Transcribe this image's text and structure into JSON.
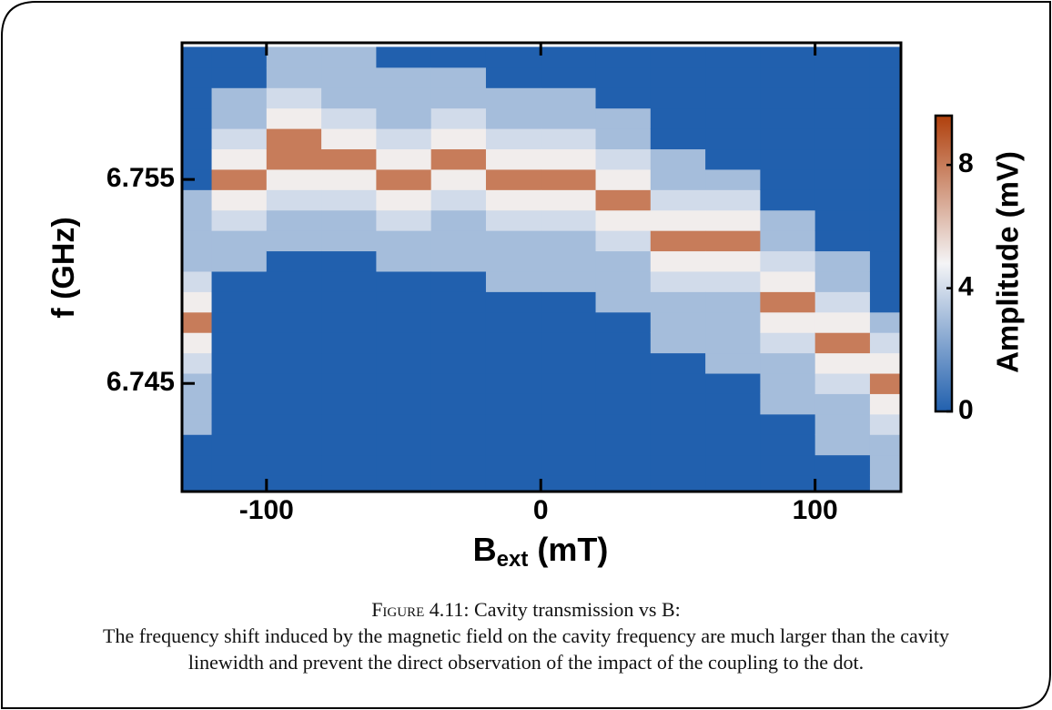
{
  "chart_data": {
    "type": "heatmap",
    "xlabel": {
      "main": "B",
      "sub": "ext",
      "unit": "(mT)"
    },
    "ylabel": "f (GHz)",
    "zlabel": "Amplitude (mV)",
    "x": [
      -130,
      -110,
      -90,
      -70,
      -50,
      -30,
      -10,
      10,
      30,
      50,
      70,
      90,
      110,
      130
    ],
    "y": [
      6.74,
      6.741,
      6.742,
      6.743,
      6.744,
      6.745,
      6.746,
      6.747,
      6.748,
      6.749,
      6.75,
      6.751,
      6.752,
      6.753,
      6.754,
      6.755,
      6.756,
      6.757,
      6.758,
      6.759,
      6.76,
      6.761
    ],
    "z": [
      [
        0,
        0,
        0,
        3,
        3,
        3,
        4,
        5,
        8,
        5,
        4,
        3,
        3,
        3,
        3,
        0,
        0,
        0,
        0,
        0,
        0,
        0
      ],
      [
        0,
        0,
        0,
        0,
        0,
        0,
        0,
        0,
        0,
        0,
        0,
        3,
        3,
        4,
        5,
        8,
        5,
        4,
        3,
        3,
        0,
        0
      ],
      [
        0,
        0,
        0,
        0,
        0,
        0,
        0,
        0,
        0,
        0,
        0,
        0,
        3,
        3,
        4,
        5,
        8,
        8,
        5,
        4,
        3,
        3
      ],
      [
        0,
        0,
        0,
        0,
        0,
        0,
        0,
        0,
        0,
        0,
        0,
        0,
        3,
        3,
        4,
        5,
        8,
        5,
        4,
        3,
        3,
        3
      ],
      [
        0,
        0,
        0,
        0,
        0,
        0,
        0,
        0,
        0,
        0,
        0,
        3,
        3,
        4,
        5,
        8,
        5,
        4,
        3,
        3,
        3,
        0
      ],
      [
        0,
        0,
        0,
        0,
        0,
        0,
        0,
        0,
        0,
        0,
        0,
        3,
        3,
        3,
        4,
        5,
        8,
        5,
        4,
        3,
        3,
        0
      ],
      [
        0,
        0,
        0,
        0,
        0,
        0,
        0,
        0,
        0,
        0,
        3,
        3,
        3,
        4,
        5,
        8,
        5,
        4,
        3,
        3,
        0,
        0
      ],
      [
        0,
        0,
        0,
        0,
        0,
        0,
        0,
        0,
        0,
        0,
        3,
        3,
        3,
        4,
        5,
        8,
        5,
        4,
        3,
        3,
        0,
        0
      ],
      [
        0,
        0,
        0,
        0,
        0,
        0,
        0,
        0,
        0,
        3,
        3,
        3,
        4,
        5,
        8,
        5,
        4,
        3,
        3,
        0,
        0,
        0
      ],
      [
        0,
        0,
        0,
        0,
        0,
        0,
        0,
        3,
        3,
        3,
        4,
        5,
        8,
        5,
        4,
        3,
        3,
        0,
        0,
        0,
        0,
        0
      ],
      [
        0,
        0,
        0,
        0,
        0,
        0,
        3,
        3,
        3,
        3,
        4,
        5,
        8,
        5,
        4,
        3,
        0,
        0,
        0,
        0,
        0,
        0
      ],
      [
        0,
        0,
        0,
        0,
        3,
        3,
        3,
        4,
        5,
        8,
        5,
        4,
        3,
        3,
        0,
        0,
        0,
        0,
        0,
        0,
        0,
        0
      ],
      [
        0,
        0,
        3,
        3,
        3,
        4,
        5,
        8,
        5,
        4,
        3,
        3,
        0,
        0,
        0,
        0,
        0,
        0,
        0,
        0,
        0,
        0
      ],
      [
        3,
        3,
        3,
        4,
        5,
        8,
        5,
        4,
        3,
        0,
        0,
        0,
        0,
        0,
        0,
        0,
        0,
        0,
        0,
        0,
        0,
        0
      ]
    ],
    "xlim": [
      -130.8,
      131.3
    ],
    "xticks": [
      -100,
      0,
      100
    ],
    "ylim": [
      6.7397,
      6.7617
    ],
    "yticks": [
      6.745,
      6.755
    ],
    "zlim": [
      0,
      9.6
    ],
    "zticks": [
      0,
      4,
      8
    ],
    "colormap": [
      "#2160ae",
      "#f4f4f6",
      "#b0400c"
    ]
  },
  "caption": {
    "label": "Figure 4.11:",
    "title": "Cavity transmission vs B:",
    "text": "The frequency shift induced by the magnetic field on the cavity frequency are much larger than the cavity linewidth and prevent the direct observation of the impact of the coupling to the dot."
  }
}
